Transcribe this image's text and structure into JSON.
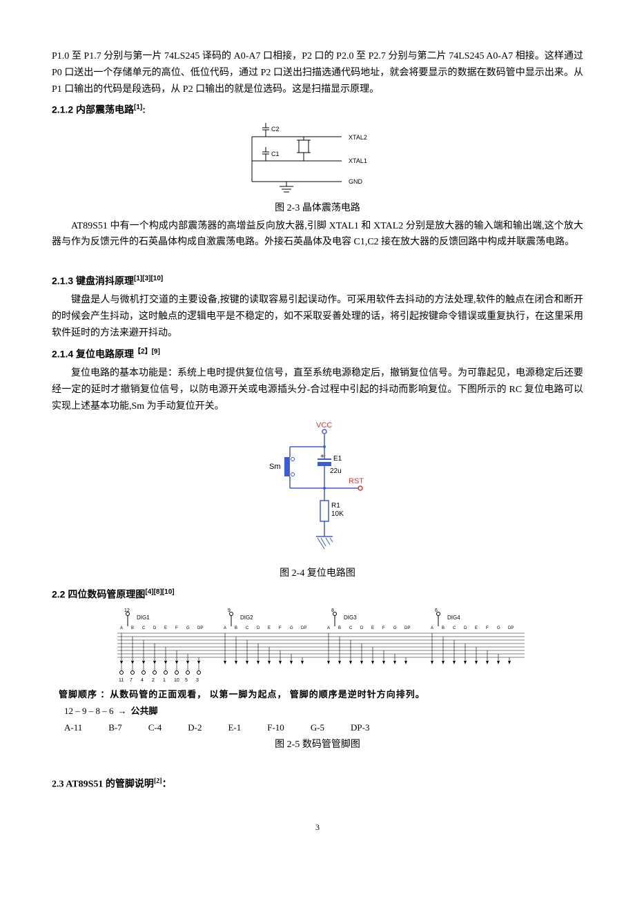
{
  "para1": "P1.0 至 P1.7 分别与第一片 74LS245 译码的 A0-A7 口相接，P2 口的 P2.0 至 P2.7 分别与第二片 74LS245 A0-A7 相接。这样通过 P0 口送出一个存储单元的高位、低位代码，通过 P2 口送出扫描选通代码地址，就会将要显示的数据在数码管中显示出来。从 P1 口输出的代码是段选码，从 P2 口输出的就是位选码。这是扫描显示原理。",
  "h212": "2.1.2 内部震荡电路",
  "h212_ref": "[1]",
  "fig23": {
    "labels": {
      "c2": "C2",
      "c1": "C1",
      "xtal2": "XTAL2",
      "xtal1": "XTAL1",
      "gnd": "GND"
    },
    "caption": "图 2-3 晶体震荡电路"
  },
  "para2": "AT89S51 中有一个构成内部震荡器的高增益反向放大器,引脚 XTAL1 和 XTAL2 分别是放大器的输入端和输出端,这个放大器与作为反馈元件的石英晶体构成自激震荡电路。外接石英晶体及电容 C1,C2 接在放大器的反馈回路中构成并联震荡电路。",
  "h213": "2.1.3 键盘消抖原理",
  "h213_ref": "[1][3][10]",
  "para3": "键盘是人与微机打交道的主要设备,按键的读取容易引起误动作。可采用软件去抖动的方法处理,软件的触点在闭合和断开的时候会产生抖动，这时触点的逻辑电平是不稳定的，如不采取妥善处理的话，将引起按键命令错误或重复执行，在这里采用软件延时的方法来避开抖动。",
  "h214": "2.1.4 复位电路原理",
  "h214_ref": "【2】[9]",
  "para4": "复位电路的基本功能是：系统上电时提供复位信号，直至系统电源稳定后，撤销复位信号。为可靠起见，电源稳定后还要经一定的延时才撤销复位信号，以防电源开关或电源插头分-合过程中引起的抖动而影响复位。下图所示的 RC 复位电路可以实现上述基本功能,Sm 为手动复位开关。",
  "fig24": {
    "labels": {
      "vcc": "VCC",
      "sm": "Sm",
      "e1": "E1",
      "c22u": "22u",
      "rst": "RST",
      "r1": "R1",
      "r10k": "10K"
    },
    "caption": "图 2-4 复位电路图"
  },
  "h22": "2.2 四位数码管原理图",
  "h22_ref": "[4][8][10]",
  "fig25": {
    "digs": [
      "DIG1",
      "DIG2",
      "DIG3",
      "DIG4"
    ],
    "dig_pins": [
      "12",
      "9",
      "8",
      "6"
    ],
    "segs": [
      "A",
      "B",
      "C",
      "D",
      "E",
      "F",
      "G",
      "DP"
    ],
    "bottom_pins": [
      "11",
      "7",
      "4",
      "2",
      "1",
      "10",
      "5",
      "3"
    ],
    "pin_text": "管脚顺序 ：从数码管的正面观看， 以第一脚为起点， 管脚的顺序是逆时针方向排列。",
    "common": "12 – 9 – 8 – 6",
    "common_label": "公共脚",
    "assign": [
      "A-11",
      "B-7",
      "C-4",
      "D-2",
      "E-1",
      "F-10",
      "G-5",
      "DP-3"
    ],
    "caption": "图 2-5  数码管管脚图"
  },
  "h23": "2.3 AT89S51 的管脚说明",
  "h23_ref": "[2]",
  "page_number": "3",
  "colors": {
    "text": "#000000",
    "blue": "#3b5bd8",
    "red": "#d83b3b",
    "gray": "#707070"
  }
}
